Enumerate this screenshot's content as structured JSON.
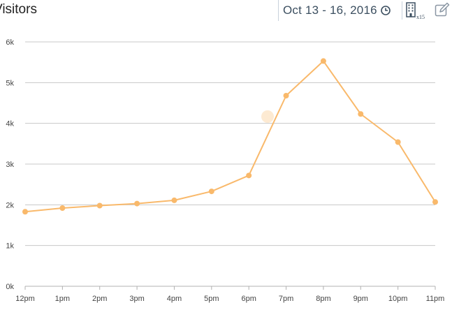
{
  "header": {
    "title": "Visitors",
    "date_range": "Oct 13 - 16, 2016",
    "building_count": "x15"
  },
  "icons": {
    "clock": "clock-icon",
    "building": "building-icon",
    "edit": "edit-icon"
  },
  "colors": {
    "line": "#f9b96b",
    "accent_text": "#3c4f60"
  },
  "chart_data": {
    "type": "line",
    "x": [
      "12pm",
      "1pm",
      "2pm",
      "3pm",
      "4pm",
      "5pm",
      "6pm",
      "7pm",
      "8pm",
      "9pm",
      "10pm",
      "11pm"
    ],
    "series": [
      {
        "values": [
          1830,
          1920,
          1980,
          2030,
          2110,
          2330,
          2720,
          4680,
          5530,
          4230,
          3540,
          2070
        ]
      }
    ],
    "y_ticks": [
      "0k",
      "1k",
      "2k",
      "3k",
      "4k",
      "5k",
      "6k"
    ],
    "ylim": [
      0,
      6000
    ],
    "grid": true
  }
}
